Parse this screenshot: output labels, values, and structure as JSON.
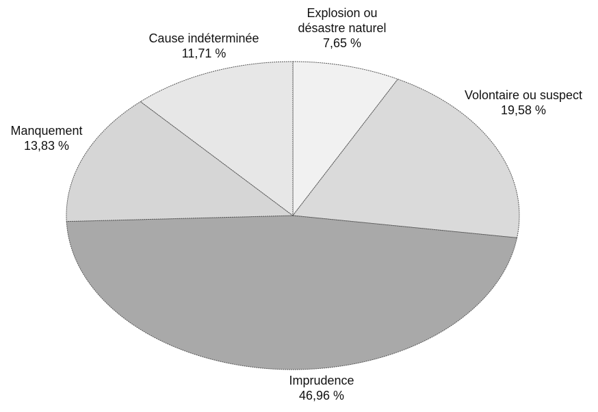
{
  "chart_data": {
    "type": "pie",
    "categories": [
      "Explosion ou désastre naturel",
      "Volontaire ou suspect",
      "Imprudence",
      "Manquement",
      "Cause indéterminée"
    ],
    "values": [
      7.65,
      19.58,
      46.96,
      13.83,
      11.71
    ],
    "value_labels": [
      "7,65 %",
      "19,58 %",
      "46,96 %",
      "13,83 %",
      "11,71 %"
    ],
    "colors": [
      "#f1f1f1",
      "#dadada",
      "#a9a9a9",
      "#d6d6d6",
      "#e7e7e7"
    ]
  }
}
